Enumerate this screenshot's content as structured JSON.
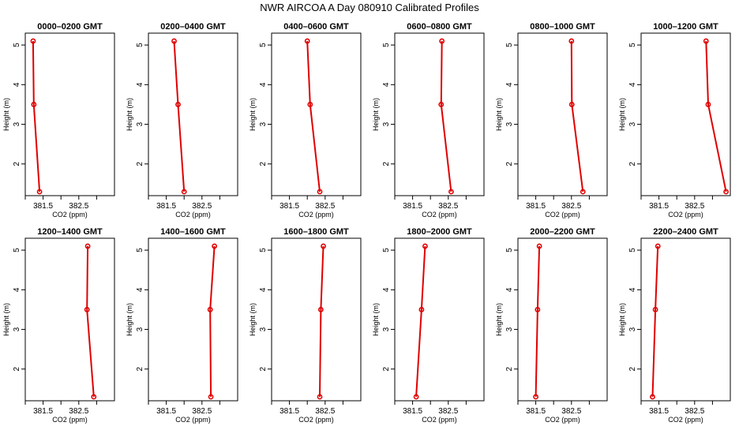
{
  "main_title": "NWR AIRCOA A  Day 080910  Calibrated Profiles",
  "chart_data": {
    "type": "line",
    "title": "NWR AIRCOA A  Day 080910  Calibrated Profiles",
    "xlabel": "CO2 (ppm)",
    "ylabel": "Height (m)",
    "xlim": [
      381.0,
      383.5
    ],
    "ylim": [
      1.2,
      5.3
    ],
    "xticks": [
      {
        "value": 381.5,
        "label": "381.5"
      },
      {
        "value": 382.5,
        "label": "382.5"
      }
    ],
    "xticks_unlabeled": [
      381.0,
      382.0,
      383.0
    ],
    "yticks": [
      2,
      3,
      4,
      5
    ],
    "grid": false,
    "legend": "none",
    "line_color": "#e00000",
    "panels": [
      {
        "title": "0000–0200 GMT",
        "points": [
          {
            "x": 381.22,
            "y": 5.1
          },
          {
            "x": 381.24,
            "y": 3.5
          },
          {
            "x": 381.4,
            "y": 1.3
          }
        ]
      },
      {
        "title": "0200–0400 GMT",
        "points": [
          {
            "x": 381.72,
            "y": 5.1
          },
          {
            "x": 381.83,
            "y": 3.5
          },
          {
            "x": 382.0,
            "y": 1.3
          }
        ]
      },
      {
        "title": "0400–0600 GMT",
        "points": [
          {
            "x": 382.0,
            "y": 5.1
          },
          {
            "x": 382.08,
            "y": 3.5
          },
          {
            "x": 382.35,
            "y": 1.3
          }
        ]
      },
      {
        "title": "0600–0800 GMT",
        "points": [
          {
            "x": 382.32,
            "y": 5.1
          },
          {
            "x": 382.3,
            "y": 3.5
          },
          {
            "x": 382.58,
            "y": 1.3
          }
        ]
      },
      {
        "title": "0800–1000 GMT",
        "points": [
          {
            "x": 382.5,
            "y": 5.1
          },
          {
            "x": 382.51,
            "y": 3.5
          },
          {
            "x": 382.82,
            "y": 1.3
          }
        ]
      },
      {
        "title": "1000–1200 GMT",
        "points": [
          {
            "x": 382.82,
            "y": 5.1
          },
          {
            "x": 382.88,
            "y": 3.5
          },
          {
            "x": 383.38,
            "y": 1.3
          }
        ]
      },
      {
        "title": "1200–1400 GMT",
        "points": [
          {
            "x": 382.75,
            "y": 5.1
          },
          {
            "x": 382.73,
            "y": 3.5
          },
          {
            "x": 382.92,
            "y": 1.3
          }
        ]
      },
      {
        "title": "1400–1600 GMT",
        "points": [
          {
            "x": 382.85,
            "y": 5.1
          },
          {
            "x": 382.73,
            "y": 3.5
          },
          {
            "x": 382.75,
            "y": 1.3
          }
        ]
      },
      {
        "title": "1600–1800 GMT",
        "points": [
          {
            "x": 382.45,
            "y": 5.1
          },
          {
            "x": 382.38,
            "y": 3.5
          },
          {
            "x": 382.35,
            "y": 1.3
          }
        ]
      },
      {
        "title": "1800–2000 GMT",
        "points": [
          {
            "x": 381.85,
            "y": 5.1
          },
          {
            "x": 381.75,
            "y": 3.5
          },
          {
            "x": 381.6,
            "y": 1.3
          }
        ]
      },
      {
        "title": "2000–2200 GMT",
        "points": [
          {
            "x": 381.6,
            "y": 5.1
          },
          {
            "x": 381.55,
            "y": 3.5
          },
          {
            "x": 381.5,
            "y": 1.3
          }
        ]
      },
      {
        "title": "2200–2400 GMT",
        "points": [
          {
            "x": 381.47,
            "y": 5.1
          },
          {
            "x": 381.4,
            "y": 3.5
          },
          {
            "x": 381.32,
            "y": 1.3
          }
        ]
      }
    ]
  }
}
